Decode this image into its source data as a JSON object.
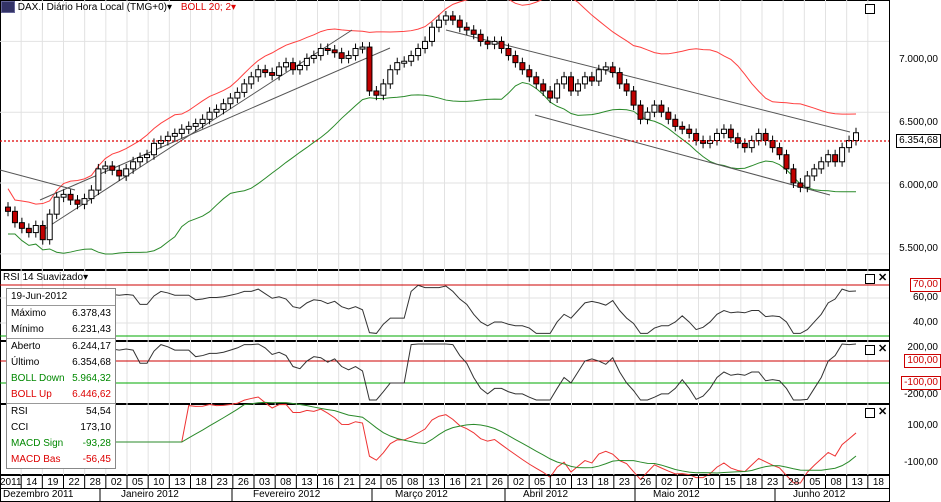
{
  "header": {
    "symbol_icon": "us-flag-icon",
    "title": "DAX.I Diário Hora Local (TMG+0)",
    "title_arrow": "▾",
    "indicator": "BOLL 20; 2",
    "indicator_arrow": "▾"
  },
  "rsi_panel": {
    "title": "RSI 14 Suavizado",
    "arrow": "▾"
  },
  "colors": {
    "price_up": "#ffffff",
    "price_down": "#c00000",
    "boll_up": "#ff4040",
    "boll_down": "#2a8a2a",
    "accent": "#d00000"
  },
  "price_axis": {
    "labels": [
      "7.000,00",
      "6.500,00",
      "6.000,00",
      "5.500,00"
    ],
    "last": "6.354,68"
  },
  "rsi_axis": {
    "labels": [
      "70,00",
      "60,00",
      "40,00"
    ]
  },
  "cci_axis": {
    "labels": [
      "200,00",
      "100,00",
      "-100,00",
      "-200,00"
    ]
  },
  "macd_axis": {
    "labels": [
      "100,00",
      "-100,00"
    ]
  },
  "legend": {
    "date": "19-Jun-2012",
    "rows": [
      {
        "label": "Máximo",
        "value": "6.378,43"
      },
      {
        "label": "Mínimo",
        "value": "6.231,43"
      },
      {
        "label": "Aberto",
        "value": "6.244,17"
      },
      {
        "label": "Último",
        "value": "6.354,68"
      },
      {
        "label": "BOLL Down",
        "value": "5.964,32"
      },
      {
        "label": "BOLL Up",
        "value": "6.446,62"
      },
      {
        "label": "RSI",
        "value": "54,54"
      },
      {
        "label": "CCI",
        "value": "173,10"
      },
      {
        "label": "MACD Sign",
        "value": "-93,28"
      },
      {
        "label": "MACD Bas",
        "value": "-56,45"
      }
    ]
  },
  "date_axis": {
    "days": [
      "2011",
      "14",
      "19",
      "22",
      "28",
      "02",
      "05",
      "10",
      "13",
      "18",
      "23",
      "26",
      "03",
      "08",
      "13",
      "16",
      "21",
      "24",
      "05",
      "08",
      "13",
      "16",
      "21",
      "26",
      "02",
      "05",
      "10",
      "13",
      "18",
      "23",
      "26",
      "02",
      "07",
      "10",
      "15",
      "18",
      "23",
      "28",
      "05",
      "08",
      "13",
      "18"
    ],
    "months": [
      "Dezembro 2011",
      "Janeiro 2012",
      "Fevereiro 2012",
      "Março 2012",
      "Abril 2012",
      "Maio 2012",
      "Junho 2012"
    ]
  },
  "chart_data": {
    "type": "candlestick",
    "close_series": [
      5800,
      5720,
      5680,
      5650,
      5700,
      5600,
      5780,
      5900,
      5920,
      5880,
      5850,
      5890,
      5950,
      6100,
      6120,
      6090,
      6050,
      6100,
      6150,
      6180,
      6200,
      6280,
      6300,
      6330,
      6350,
      6380,
      6400,
      6420,
      6450,
      6500,
      6520,
      6560,
      6600,
      6640,
      6700,
      6750,
      6800,
      6780,
      6760,
      6820,
      6850,
      6800,
      6830,
      6880,
      6900,
      6950,
      6940,
      6920,
      6880,
      6900,
      6950,
      6960,
      6650,
      6620,
      6700,
      6800,
      6850,
      6860,
      6900,
      6950,
      7000,
      7100,
      7150,
      7180,
      7150,
      7100,
      7080,
      7050,
      7000,
      6980,
      7000,
      6950,
      6900,
      6850,
      6800,
      6750,
      6700,
      6650,
      6600,
      6700,
      6750,
      6650,
      6700,
      6750,
      6720,
      6800,
      6820,
      6780,
      6700,
      6650,
      6550,
      6450,
      6500,
      6550,
      6500,
      6450,
      6400,
      6380,
      6350,
      6300,
      6280,
      6300,
      6350,
      6380,
      6320,
      6280,
      6250,
      6300,
      6350,
      6300,
      6250,
      6200,
      6100,
      6000,
      5970,
      6050,
      6100,
      6150,
      6200,
      6150,
      6250,
      6300,
      6355
    ],
    "ylim": [
      5400,
      7250
    ],
    "bollinger": {
      "upper_name": "BOLL Up",
      "lower_name": "BOLL Down",
      "period": 20,
      "dev": 2
    },
    "rsi_ref": [
      70,
      30
    ],
    "cci_ref": [
      100,
      -100
    ]
  }
}
